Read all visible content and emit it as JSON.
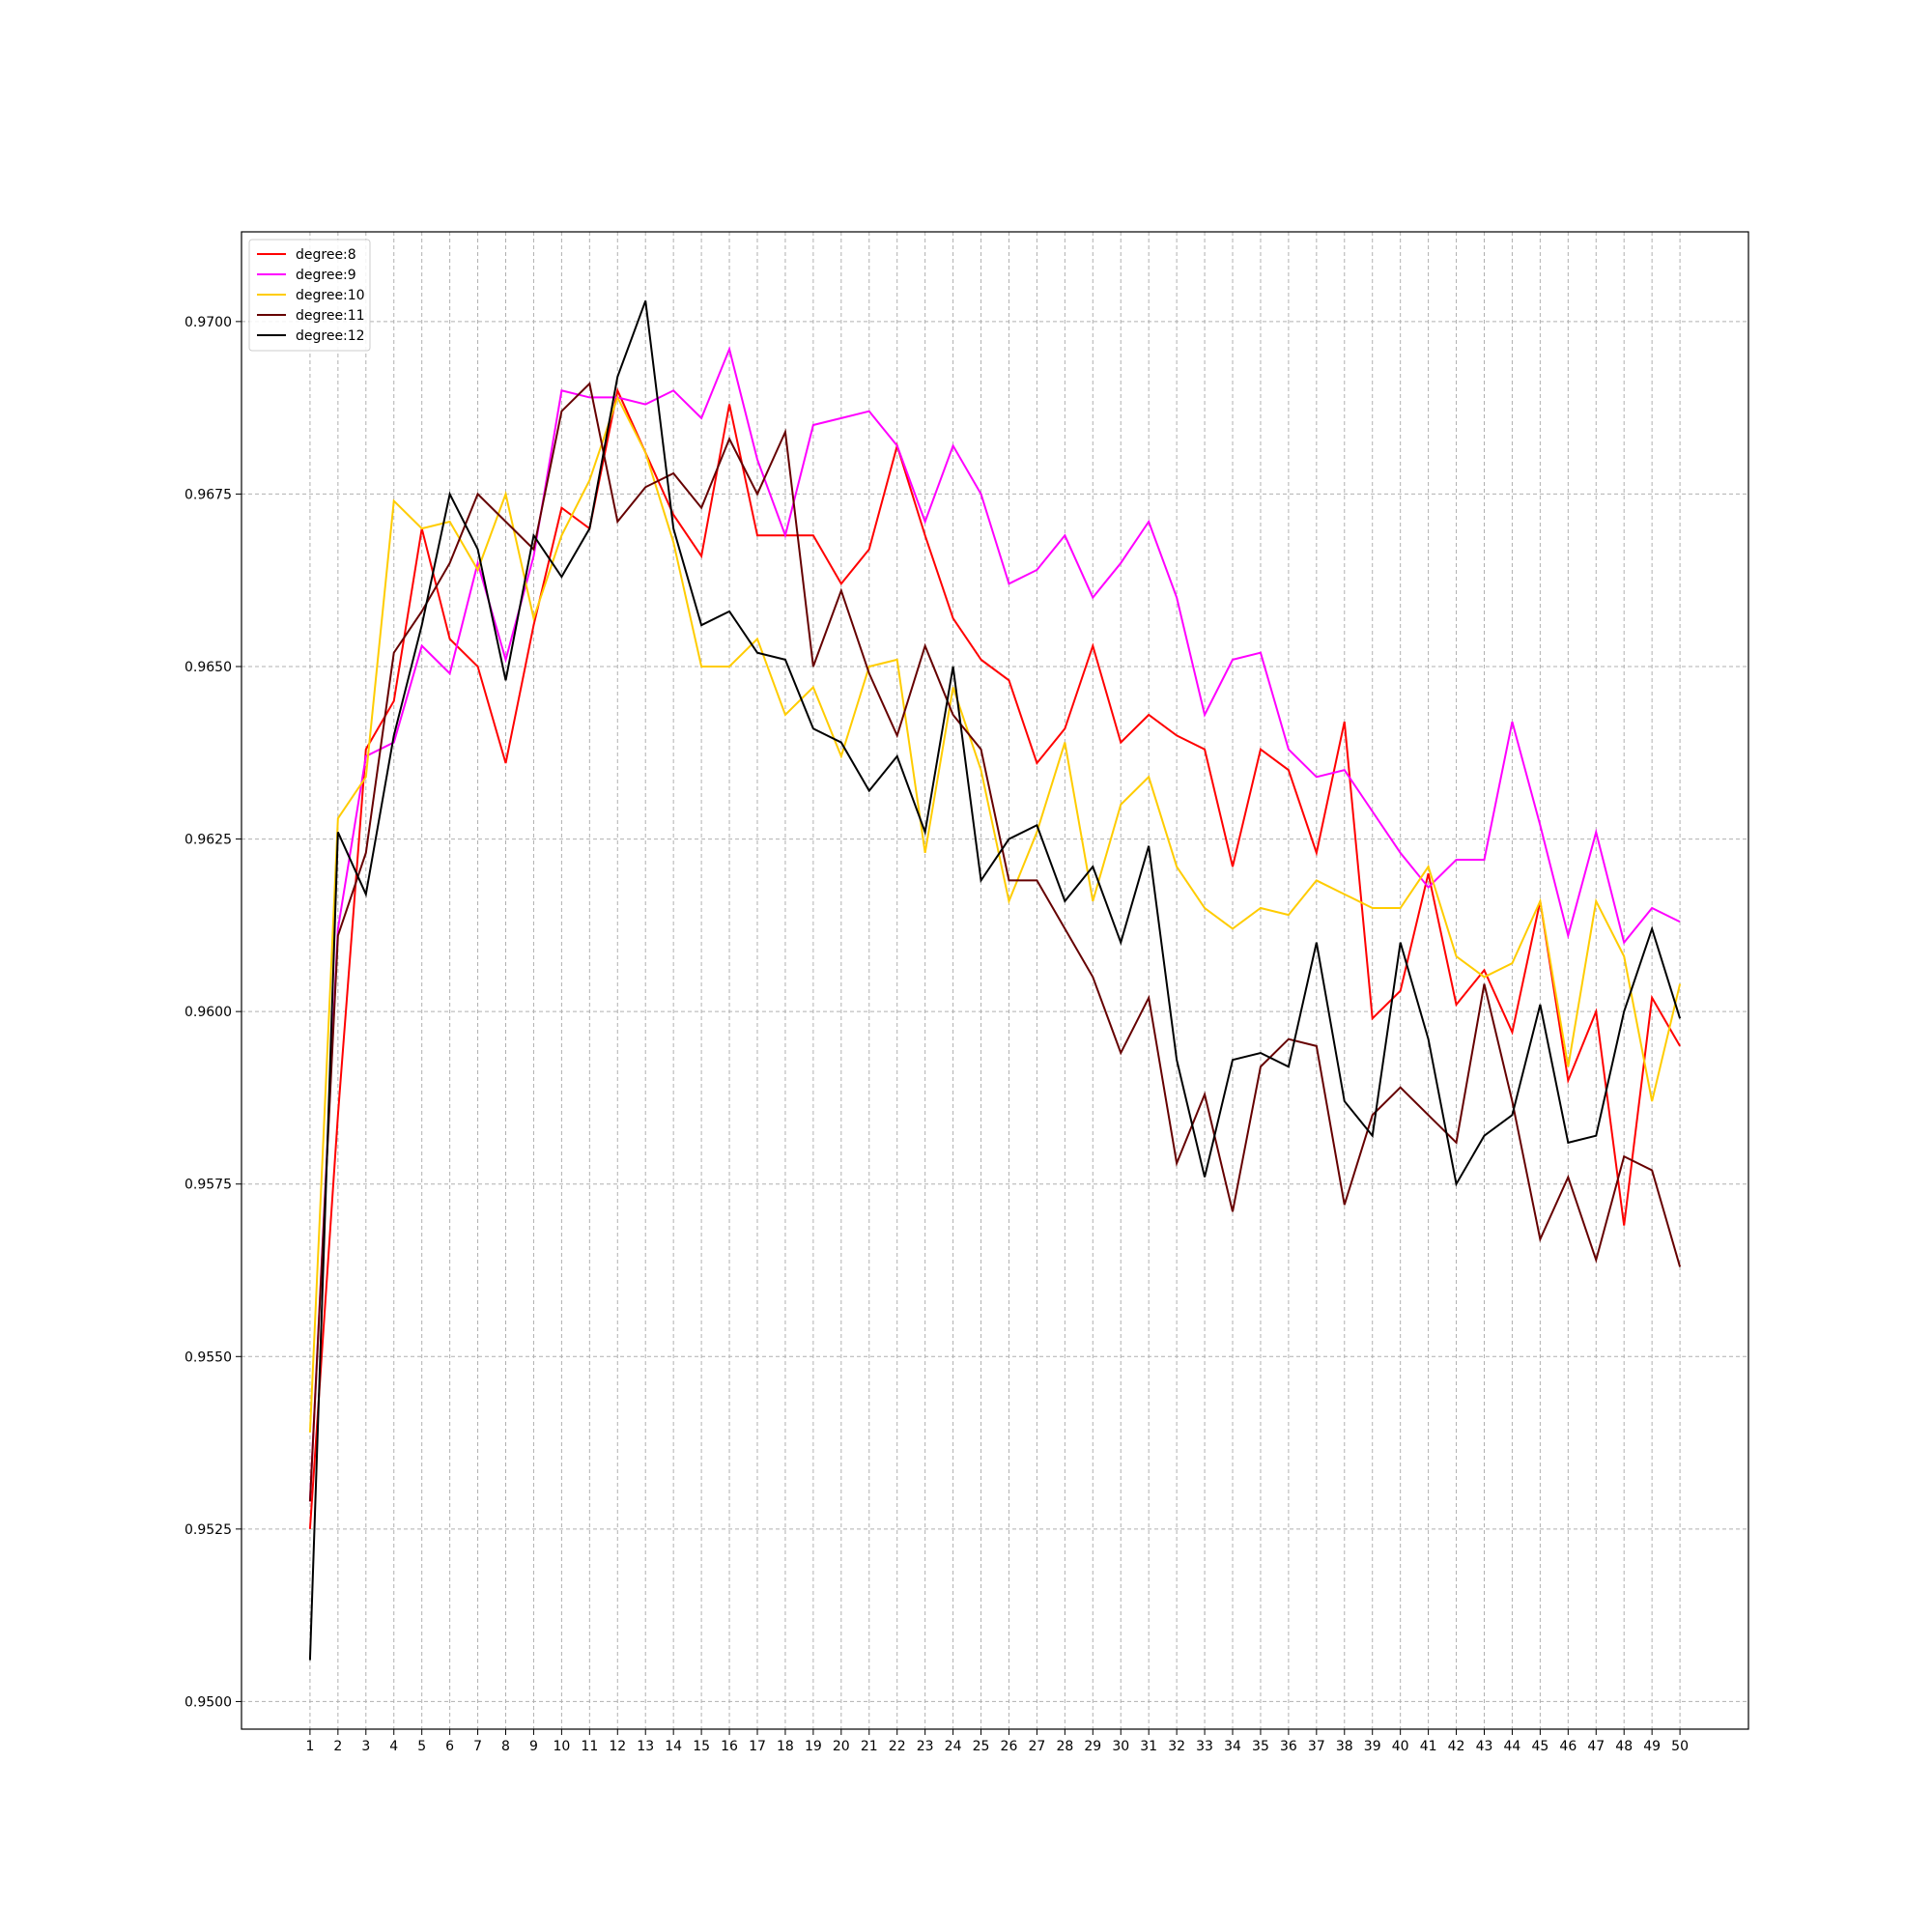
{
  "chart_data": {
    "type": "line",
    "title": "",
    "xlabel": "",
    "ylabel": "",
    "x": [
      1,
      2,
      3,
      4,
      5,
      6,
      7,
      8,
      9,
      10,
      11,
      12,
      13,
      14,
      15,
      16,
      17,
      18,
      19,
      20,
      21,
      22,
      23,
      24,
      25,
      26,
      27,
      28,
      29,
      30,
      31,
      32,
      33,
      34,
      35,
      36,
      37,
      38,
      39,
      40,
      41,
      42,
      43,
      44,
      45,
      46,
      47,
      48,
      49,
      50
    ],
    "xlim": [
      -1.45,
      52.45
    ],
    "ylim": [
      0.9496,
      0.9713
    ],
    "yticks": [
      0.95,
      0.9525,
      0.955,
      0.9575,
      0.96,
      0.9625,
      0.965,
      0.9675,
      0.97
    ],
    "ytick_labels": [
      "0.9500",
      "0.9525",
      "0.9550",
      "0.9575",
      "0.9600",
      "0.9625",
      "0.9650",
      "0.9675",
      "0.9700"
    ],
    "grid": true,
    "legend_position": "top-left",
    "series": [
      {
        "name": "degree:8",
        "color": "#ff0000",
        "values": [
          0.9525,
          0.9585,
          0.9638,
          0.9645,
          0.967,
          0.9654,
          0.965,
          0.9636,
          0.9656,
          0.9673,
          0.967,
          0.969,
          0.9681,
          0.9672,
          0.9666,
          0.9688,
          0.9669,
          0.9669,
          0.9669,
          0.9662,
          0.9667,
          0.9682,
          0.9669,
          0.9657,
          0.9651,
          0.9648,
          0.9636,
          0.9641,
          0.9653,
          0.9639,
          0.9643,
          0.964,
          0.9638,
          0.9621,
          0.9638,
          0.9635,
          0.9623,
          0.9642,
          0.9599,
          0.9603,
          0.962,
          0.9601,
          0.9606,
          0.9597,
          0.9616,
          0.959,
          0.96,
          0.9569,
          0.9602,
          0.9595
        ]
      },
      {
        "name": "degree:9",
        "color": "#ff00ff",
        "values": [
          0.9529,
          0.9612,
          0.9637,
          0.9639,
          0.9653,
          0.9649,
          0.9665,
          0.9651,
          0.9666,
          0.969,
          0.9689,
          0.9689,
          0.9688,
          0.969,
          0.9686,
          0.9696,
          0.968,
          0.9669,
          0.9685,
          0.9686,
          0.9687,
          0.9682,
          0.9671,
          0.9682,
          0.9675,
          0.9662,
          0.9664,
          0.9669,
          0.966,
          0.9665,
          0.9671,
          0.966,
          0.9643,
          0.9651,
          0.9652,
          0.9638,
          0.9634,
          0.9635,
          0.9629,
          0.9623,
          0.9618,
          0.9622,
          0.9622,
          0.9642,
          0.9627,
          0.9611,
          0.9626,
          0.961,
          0.9615,
          0.9613
        ]
      },
      {
        "name": "degree:10",
        "color": "#ffcc00",
        "values": [
          0.9539,
          0.9628,
          0.9634,
          0.9674,
          0.967,
          0.9671,
          0.9664,
          0.9675,
          0.9657,
          0.9669,
          0.9677,
          0.9689,
          0.9681,
          0.9668,
          0.965,
          0.965,
          0.9654,
          0.9643,
          0.9647,
          0.9637,
          0.965,
          0.9651,
          0.9623,
          0.9647,
          0.9635,
          0.9616,
          0.9626,
          0.9639,
          0.9616,
          0.963,
          0.9634,
          0.9621,
          0.9615,
          0.9612,
          0.9615,
          0.9614,
          0.9619,
          0.9617,
          0.9615,
          0.9615,
          0.9621,
          0.9608,
          0.9605,
          0.9607,
          0.9616,
          0.9592,
          0.9616,
          0.9608,
          0.9587,
          0.9604
        ]
      },
      {
        "name": "degree:11",
        "color": "#660000",
        "values": [
          0.9529,
          0.9611,
          0.9623,
          0.9652,
          0.9658,
          0.9665,
          0.9675,
          0.9671,
          0.9667,
          0.9687,
          0.9691,
          0.9671,
          0.9676,
          0.9678,
          0.9673,
          0.9683,
          0.9675,
          0.9684,
          0.965,
          0.9661,
          0.9649,
          0.964,
          0.9653,
          0.9643,
          0.9638,
          0.9619,
          0.9619,
          0.9612,
          0.9605,
          0.9594,
          0.9602,
          0.9578,
          0.9588,
          0.9571,
          0.9592,
          0.9596,
          0.9595,
          0.9572,
          0.9585,
          0.9589,
          0.9585,
          0.9581,
          0.9604,
          0.9587,
          0.9567,
          0.9576,
          0.9564,
          0.9579,
          0.9577,
          0.9563
        ]
      },
      {
        "name": "degree:12",
        "color": "#000000",
        "values": [
          0.9506,
          0.9626,
          0.9617,
          0.964,
          0.9656,
          0.9675,
          0.9667,
          0.9648,
          0.9669,
          0.9663,
          0.967,
          0.9692,
          0.9703,
          0.967,
          0.9656,
          0.9658,
          0.9652,
          0.9651,
          0.9641,
          0.9639,
          0.9632,
          0.9637,
          0.9626,
          0.965,
          0.9619,
          0.9625,
          0.9627,
          0.9616,
          0.9621,
          0.961,
          0.9624,
          0.9593,
          0.9576,
          0.9593,
          0.9594,
          0.9592,
          0.961,
          0.9587,
          0.9582,
          0.961,
          0.9596,
          0.9575,
          0.9582,
          0.9585,
          0.9601,
          0.9581,
          0.9582,
          0.96,
          0.9612,
          0.9599
        ]
      }
    ]
  }
}
